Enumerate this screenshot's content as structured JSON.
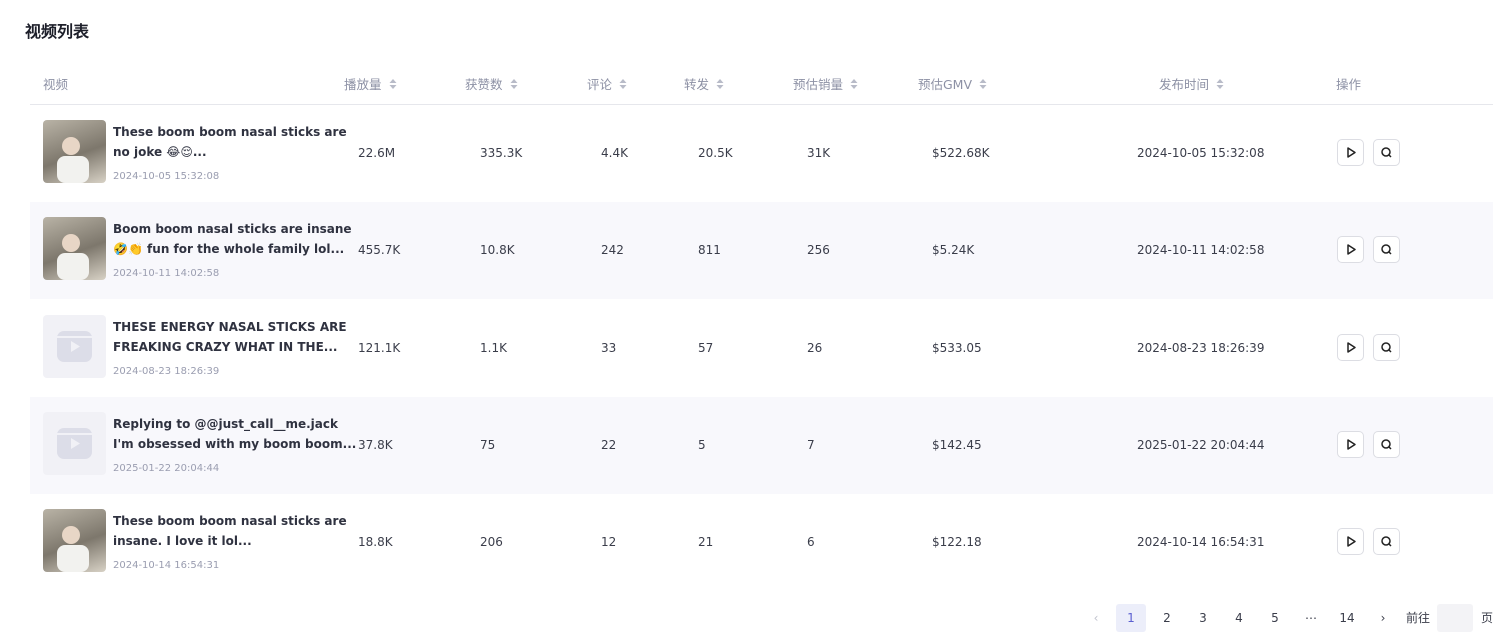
{
  "header": {
    "title": "视频列表"
  },
  "table": {
    "headers": [
      "视频",
      "播放量",
      "获赞数",
      "评论",
      "转发",
      "预估销量",
      "预估GMV",
      "发布时间",
      "操作"
    ],
    "rows": [
      {
        "title_lines": [
          "These boom boom nasal sticks are",
          "no joke 😂😌..."
        ],
        "date": "2024-10-05 15:32:08",
        "views": "22.6M",
        "likes": "335.3K",
        "comments": "4.4K",
        "shares": "20.5K",
        "sales": "31K",
        "gmv": "$522.68K",
        "published": "2024-10-05 15:32:08"
      },
      {
        "title_lines": [
          "Boom boom nasal sticks are insane",
          "🤣👏 fun for the whole family lol..."
        ],
        "date": "2024-10-11 14:02:58",
        "views": "455.7K",
        "likes": "10.8K",
        "comments": "242",
        "shares": "811",
        "sales": "256",
        "gmv": "$5.24K",
        "published": "2024-10-11 14:02:58"
      },
      {
        "title_lines": [
          "THESE ENERGY NASAL STICKS ARE",
          "FREAKING CRAZY WHAT IN THE..."
        ],
        "date": "2024-08-23 18:26:39",
        "views": "121.1K",
        "likes": "1.1K",
        "comments": "33",
        "shares": "57",
        "sales": "26",
        "gmv": "$533.05",
        "published": "2024-08-23 18:26:39"
      },
      {
        "title_lines": [
          "Replying to @@just_call__me.jack",
          "I'm obsessed with my boom boom..."
        ],
        "date": "2025-01-22 20:04:44",
        "views": "37.8K",
        "likes": "75",
        "comments": "22",
        "shares": "5",
        "sales": "7",
        "gmv": "$142.45",
        "published": "2025-01-22 20:04:44"
      },
      {
        "title_lines": [
          "These boom boom nasal sticks are",
          "insane. I love it lol..."
        ],
        "date": "2024-10-14 16:54:31",
        "views": "18.8K",
        "likes": "206",
        "comments": "12",
        "shares": "21",
        "sales": "6",
        "gmv": "$122.18",
        "published": "2024-10-14 16:54:31"
      }
    ]
  },
  "pagination": {
    "pages": [
      "1",
      "2",
      "3",
      "4",
      "5",
      "⋯",
      "14"
    ],
    "goto": "前往",
    "page_unit": "页"
  }
}
